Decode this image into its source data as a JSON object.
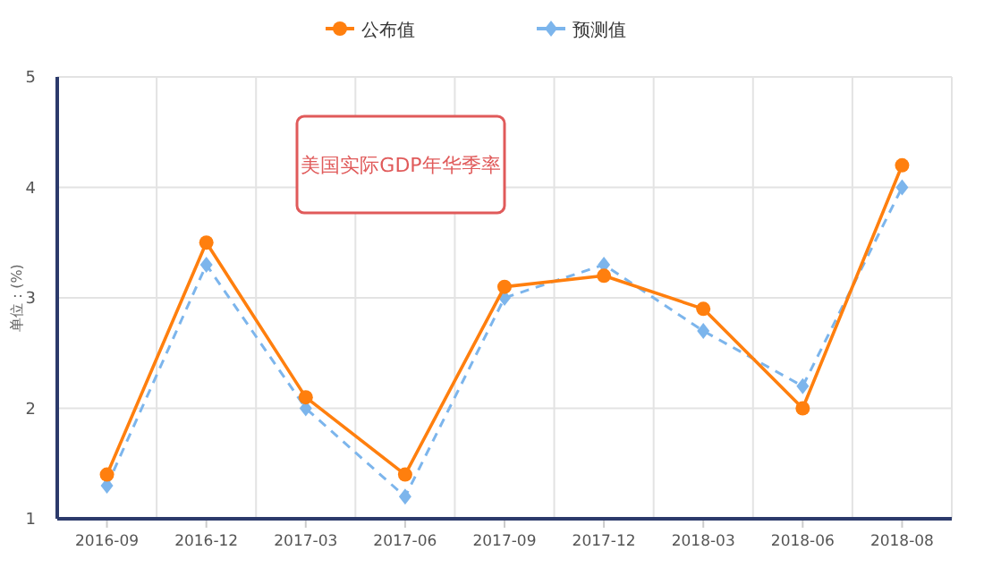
{
  "chart_data": {
    "type": "line",
    "title": "美国实际GDP年华季率",
    "ylabel": "单位：(%)",
    "categories": [
      "2016-09",
      "2016-12",
      "2017-03",
      "2017-06",
      "2017-09",
      "2017-12",
      "2018-03",
      "2018-06",
      "2018-08"
    ],
    "series": [
      {
        "name": "公布值",
        "color": "#ff7f0e",
        "marker": "circle",
        "line_style": "solid",
        "values": [
          1.4,
          3.5,
          2.1,
          1.4,
          3.1,
          3.2,
          2.9,
          2.0,
          4.2
        ]
      },
      {
        "name": "预测值",
        "color": "#7cb5ec",
        "marker": "diamond",
        "line_style": "dashed",
        "values": [
          1.3,
          3.3,
          2.0,
          1.2,
          3.0,
          3.3,
          2.7,
          2.2,
          4.0
        ]
      }
    ],
    "ylim": [
      1,
      5
    ],
    "yticks": [
      1,
      2,
      3,
      4,
      5
    ],
    "grid": true,
    "legend": "top"
  }
}
